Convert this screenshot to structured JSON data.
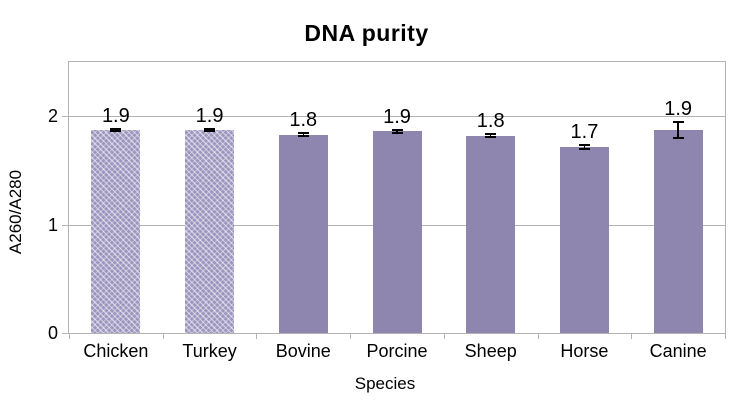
{
  "chart_data": {
    "type": "bar",
    "title": "DNA purity",
    "xlabel": "Species",
    "ylabel": "A260/A280",
    "categories": [
      "Chicken",
      "Turkey",
      "Bovine",
      "Porcine",
      "Sheep",
      "Horse",
      "Canine"
    ],
    "values": [
      1.87,
      1.87,
      1.83,
      1.86,
      1.82,
      1.72,
      1.87
    ],
    "data_labels": [
      "1.9",
      "1.9",
      "1.8",
      "1.9",
      "1.8",
      "1.7",
      "1.9"
    ],
    "error_bars_plus_minus": [
      0.02,
      0.02,
      0.025,
      0.023,
      0.023,
      0.028,
      0.083
    ],
    "patterned_categories": [
      "Chicken",
      "Turkey"
    ],
    "ylim": [
      0,
      2.5
    ],
    "yticks": [
      0,
      1,
      2
    ],
    "grid": "horizontal",
    "legend_position": "none",
    "colors": {
      "bar_solid": "#8e86ae",
      "bar_pattern_base": "#9c95be",
      "gridline": "#b3b3b3",
      "text": "#000000",
      "error_bar": "#000000",
      "background": "#ffffff"
    }
  }
}
